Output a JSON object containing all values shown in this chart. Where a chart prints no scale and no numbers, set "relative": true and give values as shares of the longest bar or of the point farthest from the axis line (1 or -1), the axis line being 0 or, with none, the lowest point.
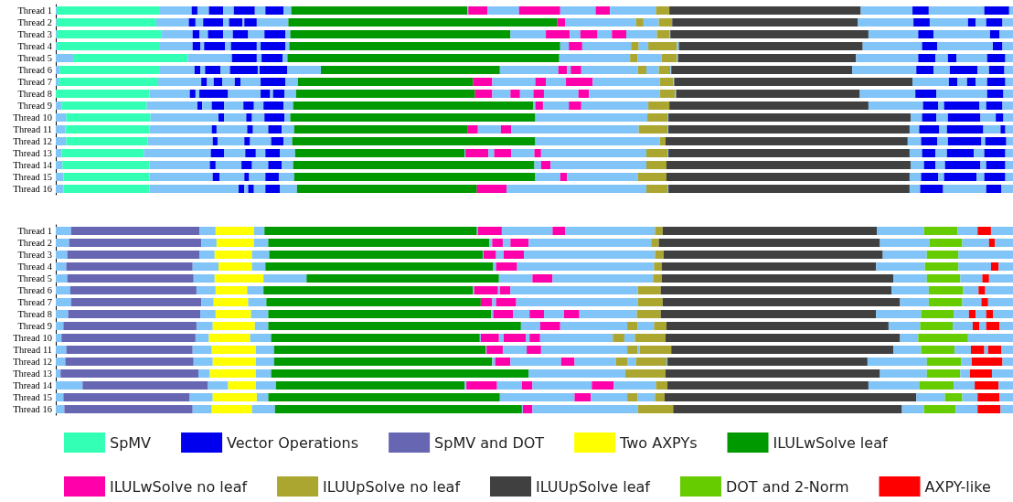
{
  "chart_data": [
    {
      "type": "bar",
      "orientation": "horizontal",
      "stacked": true,
      "relative": true,
      "legend": "bottom",
      "categories": [
        "Thread 1",
        "Thread 2",
        "Thread 3",
        "Thread 4",
        "Thread 5",
        "Thread 6",
        "Thread 7",
        "Thread 8",
        "Thread 9",
        "Thread 10",
        "Thread 11",
        "Thread 12",
        "Thread 13",
        "Thread 14",
        "Thread 15",
        "Thread 16"
      ],
      "series": [
        {
          "color": "#80c4f8",
          "values": [
            0.001,
            0.001,
            0.001,
            0.001,
            0.019,
            0.004,
            0.003,
            null,
            0.006,
            0.011,
            0.01,
            0.011,
            0.006,
            0.007,
            0.008,
            0.008
          ]
        },
        {
          "name": "SpMV",
          "color": "#33ffb5",
          "values": [
            0.107,
            0.104,
            0.109,
            0.107,
            0.119,
            0.104,
            0.104,
            0.098,
            0.089,
            0.088,
            0.088,
            0.085,
            0.086,
            0.091,
            0.09,
            0.09
          ]
        },
        {
          "color": "#80c4f8",
          "values": [
            0.034,
            0.034,
            0.033,
            0.035,
            null,
            0.037,
            0.045,
            0.042,
            0.053,
            null,
            null,
            null,
            null,
            null,
            null,
            null
          ]
        },
        {
          "name": "Vector Operations",
          "color": "#0000ee",
          "values": [
            0.006,
            0.007,
            0.007,
            0.008,
            null,
            0.006,
            0.006,
            0.006,
            0.005,
            null,
            null,
            null,
            null,
            null,
            null,
            null
          ]
        },
        {
          "color": "#80c4f8",
          "values": [
            0.012,
            0.008,
            0.009,
            0.004,
            null,
            0.005,
            0.007,
            0.004,
            0.01,
            0.071,
            0.065,
            0.068,
            0.07,
            0.063,
            0.066,
            0.093
          ]
        },
        {
          "color": "#0000ee",
          "values": [
            0.015,
            0.021,
            0.016,
            0.022,
            null,
            0.016,
            0.009,
            0.03,
            0.013,
            0.006,
            0.005,
            0.005,
            0.014,
            0.006,
            0.007,
            0.006
          ]
        },
        {
          "color": "#80c4f8",
          "values": [
            0.011,
            0.006,
            0.01,
            0.006,
            0.046,
            0.01,
            0.013,
            0.034,
            0.02,
            0.023,
            0.032,
            0.028,
            0.022,
            0.027,
            0.026,
            0.004
          ]
        },
        {
          "color": "#0000ee",
          "values": [
            0.022,
            0.014,
            0.016,
            0.027,
            0.026,
            0.029,
            0.006,
            0.01,
            0.011,
            0.006,
            0.006,
            0.006,
            0.011,
            0.011,
            0.005,
            0.006
          ]
        },
        {
          "color": "#80c4f8",
          "values": [
            0.011,
            0.002,
            0.017,
            0.004,
            0.005,
            0.002,
            0.021,
            0.003,
            0.01,
            0.013,
            0.016,
            0.022,
            0.01,
            0.017,
            0.017,
            0.012
          ]
        },
        {
          "color": "#0000ee",
          "values": [
            0.019,
            0.013,
            0.022,
            0.026,
            0.022,
            0.029,
            0.026,
            0.012,
            0.021,
            0.021,
            0.014,
            0.013,
            0.015,
            0.014,
            0.014,
            0.015
          ]
        },
        {
          "color": "#80c4f8",
          "values": [
            0.008,
            0.033,
            0.005,
            0.004,
            0.005,
            0.035,
            0.013,
            0.012,
            0.01,
            0.006,
            0.013,
            0.009,
            0.016,
            0.012,
            0.016,
            0.018
          ]
        },
        {
          "color": "#009900",
          "values": [
            0.184,
            0.281,
            0.23,
            0.283,
            0.284,
            0.187,
            0.183,
            0.187,
            0.251,
            0.256,
            0.181,
            0.254,
            0.177,
            0.252,
            0.252,
            0.188
          ]
        },
        {
          "color": "#80c4f8",
          "values": [
            0.001,
            null,
            0.037,
            0.009,
            null,
            0.061,
            null,
            null,
            0.002,
            null,
            null,
            null,
            0.001,
            0.007,
            0.026,
            null
          ]
        },
        {
          "color": "#ff00aa",
          "values": [
            0.02,
            0.008,
            0.025,
            0.014,
            null,
            0.009,
            0.02,
            0.018,
            0.008,
            null,
            0.011,
            null,
            0.024,
            0.01,
            0.007,
            0.031
          ]
        },
        {
          "color": "#80c4f8",
          "values": [
            0.033,
            null,
            0.011,
            null,
            null,
            0.004,
            0.045,
            0.019,
            0.027,
            null,
            0.024,
            null,
            0.006,
            null,
            null,
            null
          ]
        },
        {
          "color": "#ff00aa",
          "values": [
            0.043,
            null,
            0.018,
            null,
            null,
            0.011,
            0.011,
            0.01,
            0.013,
            null,
            0.011,
            null,
            0.018,
            null,
            null,
            null
          ]
        },
        {
          "color": "#80c4f8",
          "values": [
            0.037,
            null,
            0.015,
            null,
            null,
            null,
            0.021,
            0.014,
            null,
            null,
            null,
            null,
            0.024,
            null,
            null,
            null
          ]
        },
        {
          "color": "#ff00aa",
          "values": [
            0.015,
            null,
            0.015,
            null,
            null,
            null,
            0.028,
            0.011,
            null,
            null,
            null,
            null,
            0.007,
            null,
            null,
            null
          ]
        },
        {
          "color": "#80c4f8",
          "values": [
            null,
            null,
            null,
            null,
            null,
            null,
            null,
            0.036,
            null,
            null,
            null,
            null,
            null,
            null,
            null,
            null
          ]
        },
        {
          "color": "#ff00aa",
          "values": [
            null,
            null,
            null,
            null,
            null,
            null,
            null,
            0.011,
            null,
            null,
            null,
            null,
            null,
            null,
            null,
            null
          ]
        },
        {
          "color": "#80c4f8",
          "values": [
            null,
            0.074,
            null,
            0.051,
            0.074,
            0.059,
            null,
            null,
            null,
            null,
            null,
            null,
            null,
            null,
            null,
            null
          ]
        },
        {
          "color": "#aaa630",
          "values": [
            null,
            0.008,
            null,
            0.008,
            0.008,
            0.009,
            null,
            null,
            null,
            null,
            null,
            null,
            null,
            null,
            null,
            null
          ]
        },
        {
          "color": "#80c4f8",
          "values": [
            0.048,
            0.016,
            0.032,
            0.01,
            0.025,
            0.013,
            0.07,
            0.074,
            0.07,
            0.117,
            0.133,
            0.13,
            0.11,
            0.1,
            0.074,
            0.146
          ]
        },
        {
          "color": "#aaa630",
          "values": [
            0.014,
            0.014,
            0.013,
            0.03,
            0.016,
            0.012,
            0.014,
            0.016,
            0.022,
            0.021,
            0.03,
            0.006,
            0.022,
            0.021,
            0.03,
            0.022
          ]
        },
        {
          "color": "#80c4f8",
          "values": [
            null,
            null,
            0.001,
            0.002,
            0.001,
            0.001,
            0.001,
            0.001,
            null,
            0.001,
            0.001,
            null,
            0.001,
            null,
            null,
            0.001
          ]
        },
        {
          "color": "#404040",
          "values": [
            0.2,
            0.194,
            0.207,
            0.192,
            0.186,
            0.189,
            0.249,
            0.192,
            0.208,
            0.253,
            0.252,
            0.253,
            0.252,
            0.255,
            0.254,
            0.252
          ]
        },
        {
          "color": "#80c4f8",
          "values": [
            0.054,
            0.058,
            0.052,
            0.062,
            0.065,
            0.067,
            0.038,
            0.058,
            0.057,
            0.012,
            0.01,
            0.014,
            0.013,
            0.014,
            0.012,
            0.011
          ]
        },
        {
          "color": "#0000ee",
          "values": [
            0.017,
            0.017,
            0.016,
            0.016,
            0.018,
            0.018,
            0.009,
            0.022,
            0.016,
            0.015,
            0.021,
            0.017,
            0.014,
            0.012,
            0.018,
            0.024
          ]
        },
        {
          "color": "#80c4f8",
          "values": [
            null,
            0.04,
            null,
            null,
            0.013,
            0.017,
            0.01,
            null,
            0.006,
            0.012,
            0.008,
            0.011,
            0.012,
            0.01,
            0.006,
            null
          ]
        },
        {
          "color": "#0000ee",
          "values": [
            null,
            0.008,
            null,
            null,
            0.009,
            0.029,
            0.009,
            null,
            0.037,
            0.034,
            0.038,
            0.035,
            0.028,
            0.037,
            0.034,
            null
          ]
        },
        {
          "color": "#80c4f8",
          "values": [
            0.058,
            0.011,
            0.059,
            0.058,
            0.032,
            0.012,
            0.012,
            0.053,
            0.007,
            0.016,
            0.018,
            0.004,
            0.011,
            0.006,
            0.008,
            0.045
          ]
        },
        {
          "color": "#0000ee",
          "values": [
            0.026,
            0.017,
            0.01,
            0.01,
            0.019,
            0.016,
            0.019,
            0.017,
            0.017,
            0.008,
            0.005,
            0.022,
            0.022,
            0.02,
            0.022,
            0.016
          ]
        },
        {
          "color": "#80c4f8",
          "values": [
            0.004,
            0.011,
            0.014,
            0.011,
            0.008,
            0.009,
            0.008,
            0.01,
            0.011,
            0.01,
            0.008,
            0.007,
            0.008,
            0.008,
            0.008,
            0.012
          ]
        }
      ]
    },
    {
      "type": "bar",
      "orientation": "horizontal",
      "stacked": true,
      "relative": true,
      "legend": "bottom",
      "categories": [
        "Thread 1",
        "Thread 2",
        "Thread 3",
        "Thread 4",
        "Thread 5",
        "Thread 6",
        "Thread 7",
        "Thread 8",
        "Thread 9",
        "Thread 10",
        "Thread 11",
        "Thread 12",
        "Thread 13",
        "Thread 14",
        "Thread 15",
        "Thread 16"
      ],
      "series": [
        {
          "color": "#80c4f8",
          "values": [
            0.016,
            0.014,
            0.012,
            0.011,
            0.012,
            0.015,
            0.016,
            0.013,
            0.008,
            0.006,
            0.011,
            0.01,
            0.005,
            0.028,
            0.008,
            0.009
          ]
        },
        {
          "name": "SpMV and DOT",
          "color": "#6666b3",
          "values": [
            0.134,
            0.138,
            0.138,
            0.132,
            0.132,
            0.132,
            0.136,
            0.138,
            0.139,
            0.14,
            0.132,
            0.134,
            0.144,
            0.131,
            0.132,
            0.134
          ]
        },
        {
          "color": "#80c4f8",
          "values": [
            0.017,
            0.016,
            0.016,
            0.027,
            0.022,
            0.02,
            0.013,
            0.016,
            0.017,
            0.014,
            0.02,
            0.02,
            0.012,
            0.021,
            0.024,
            0.02
          ]
        },
        {
          "name": "Two AXPYs",
          "color": "#ffff00",
          "values": [
            0.04,
            0.039,
            0.039,
            0.035,
            0.051,
            0.033,
            0.036,
            0.037,
            0.044,
            0.043,
            0.046,
            0.045,
            0.048,
            0.029,
            0.046,
            0.042
          ]
        },
        {
          "color": "#80c4f8",
          "values": [
            0.011,
            0.015,
            0.018,
            0.014,
            0.045,
            0.017,
            0.019,
            0.018,
            0.014,
            0.022,
            0.019,
            0.019,
            0.016,
            0.021,
            0.012,
            0.024
          ]
        },
        {
          "name": "ILULwSolve leaf",
          "color": "#009900",
          "values": [
            0.222,
            0.231,
            0.223,
            0.238,
            0.201,
            0.219,
            0.224,
            0.233,
            0.264,
            0.218,
            0.221,
            0.228,
            0.269,
            0.197,
            0.242,
            0.258
          ]
        },
        {
          "color": "#80c4f8",
          "values": [
            0.001,
            0.003,
            0.001,
            0.003,
            0.035,
            0.001,
            null,
            0.002,
            0.02,
            0.001,
            0.001,
            0.003,
            null,
            0.002,
            0.078,
            0.001
          ]
        },
        {
          "name": "ILULwSolve no leaf",
          "color": "#ff00aa",
          "values": [
            0.025,
            0.011,
            0.013,
            0.022,
            0.021,
            0.025,
            0.012,
            0.021,
            0.021,
            0.019,
            0.017,
            0.016,
            null,
            0.032,
            0.017,
            0.01
          ]
        },
        {
          "color": "#80c4f8",
          "values": [
            0.053,
            0.008,
            0.008,
            null,
            null,
            0.002,
            0.004,
            0.017,
            null,
            0.005,
            0.025,
            0.053,
            null,
            0.026,
            null,
            null
          ]
        },
        {
          "color": "#ff00aa",
          "values": [
            0.013,
            0.019,
            0.021,
            null,
            null,
            0.011,
            0.021,
            0.015,
            null,
            0.023,
            0.015,
            0.014,
            null,
            0.011,
            null,
            null
          ]
        },
        {
          "color": "#80c4f8",
          "values": [
            null,
            null,
            null,
            null,
            null,
            null,
            null,
            0.021,
            null,
            0.004,
            null,
            null,
            null,
            0.062,
            null,
            null
          ]
        },
        {
          "color": "#ff00aa",
          "values": [
            null,
            null,
            null,
            null,
            null,
            null,
            null,
            0.016,
            null,
            0.011,
            null,
            null,
            null,
            0.023,
            null,
            null
          ]
        },
        {
          "color": "#80c4f8",
          "values": [
            null,
            null,
            null,
            null,
            null,
            null,
            null,
            null,
            0.07,
            0.076,
            0.09,
            0.043,
            0.101,
            null,
            0.038,
            null
          ]
        },
        {
          "name": "ILUUpSolve no leaf",
          "color": "#aaa630",
          "values": [
            null,
            null,
            null,
            null,
            null,
            null,
            null,
            null,
            0.011,
            0.012,
            0.011,
            0.012,
            0.042,
            null,
            0.011,
            null
          ]
        },
        {
          "color": "#80c4f8",
          "values": [
            0.094,
            0.128,
            0.137,
            0.143,
            0.105,
            0.133,
            0.127,
            0.06,
            0.017,
            0.011,
            0.002,
            0.009,
            null,
            0.044,
            0.018,
            0.11
          ]
        },
        {
          "color": "#aaa630",
          "values": [
            0.008,
            0.008,
            0.009,
            0.008,
            0.009,
            0.024,
            0.026,
            0.025,
            0.013,
            0.032,
            0.033,
            0.032,
            null,
            0.012,
            0.01,
            0.037
          ]
        },
        {
          "color": "#80c4f8",
          "values": [
            null,
            null,
            null,
            null,
            null,
            null,
            null,
            null,
            null,
            null,
            null,
            0.001,
            null,
            null,
            null,
            null
          ]
        },
        {
          "name": "ILUUpSolve leaf",
          "color": "#404040",
          "values": [
            0.224,
            0.231,
            0.229,
            0.224,
            0.242,
            0.241,
            0.248,
            0.225,
            0.232,
            0.245,
            0.232,
            0.209,
            0.224,
            0.21,
            0.263,
            0.239
          ]
        },
        {
          "color": "#80c4f8",
          "values": [
            0.049,
            0.052,
            0.046,
            0.051,
            0.035,
            0.039,
            0.03,
            0.047,
            0.033,
            0.019,
            0.029,
            0.062,
            0.049,
            0.053,
            0.03,
            0.023
          ]
        },
        {
          "name": "DOT and 2-Norm",
          "color": "#66cc00",
          "values": [
            0.035,
            0.034,
            0.033,
            0.035,
            0.035,
            0.036,
            0.035,
            0.034,
            0.034,
            0.052,
            0.035,
            0.036,
            0.035,
            0.036,
            0.018,
            0.033
          ]
        },
        {
          "color": "#80c4f8",
          "values": [
            0.021,
            0.028,
            null,
            0.034,
            0.023,
            0.016,
            0.02,
            0.016,
            0.021,
            null,
            0.017,
            0.011,
            0.01,
            0.022,
            0.016,
            0.023
          ]
        },
        {
          "name": "AXPY-like",
          "color": "#ff0000",
          "values": [
            0.014,
            0.006,
            null,
            0.008,
            0.007,
            0.007,
            0.007,
            0.007,
            0.007,
            null,
            0.014,
            0.032,
            0.023,
            0.025,
            0.023,
            0.024
          ]
        },
        {
          "color": "#80c4f8",
          "values": [
            null,
            null,
            null,
            null,
            null,
            null,
            null,
            0.011,
            0.007,
            null,
            0.004,
            null,
            null,
            null,
            null,
            null
          ]
        },
        {
          "color": "#ff0000",
          "values": [
            null,
            null,
            null,
            null,
            null,
            null,
            null,
            0.007,
            0.014,
            null,
            0.014,
            null,
            null,
            null,
            null,
            null
          ]
        },
        {
          "color": "#80c4f8",
          "values": [
            0.023,
            0.019,
            0.057,
            0.015,
            0.025,
            0.029,
            0.026,
            0.021,
            0.014,
            0.047,
            0.012,
            0.011,
            0.022,
            0.015,
            0.014,
            0.013
          ]
        }
      ]
    }
  ]
}
